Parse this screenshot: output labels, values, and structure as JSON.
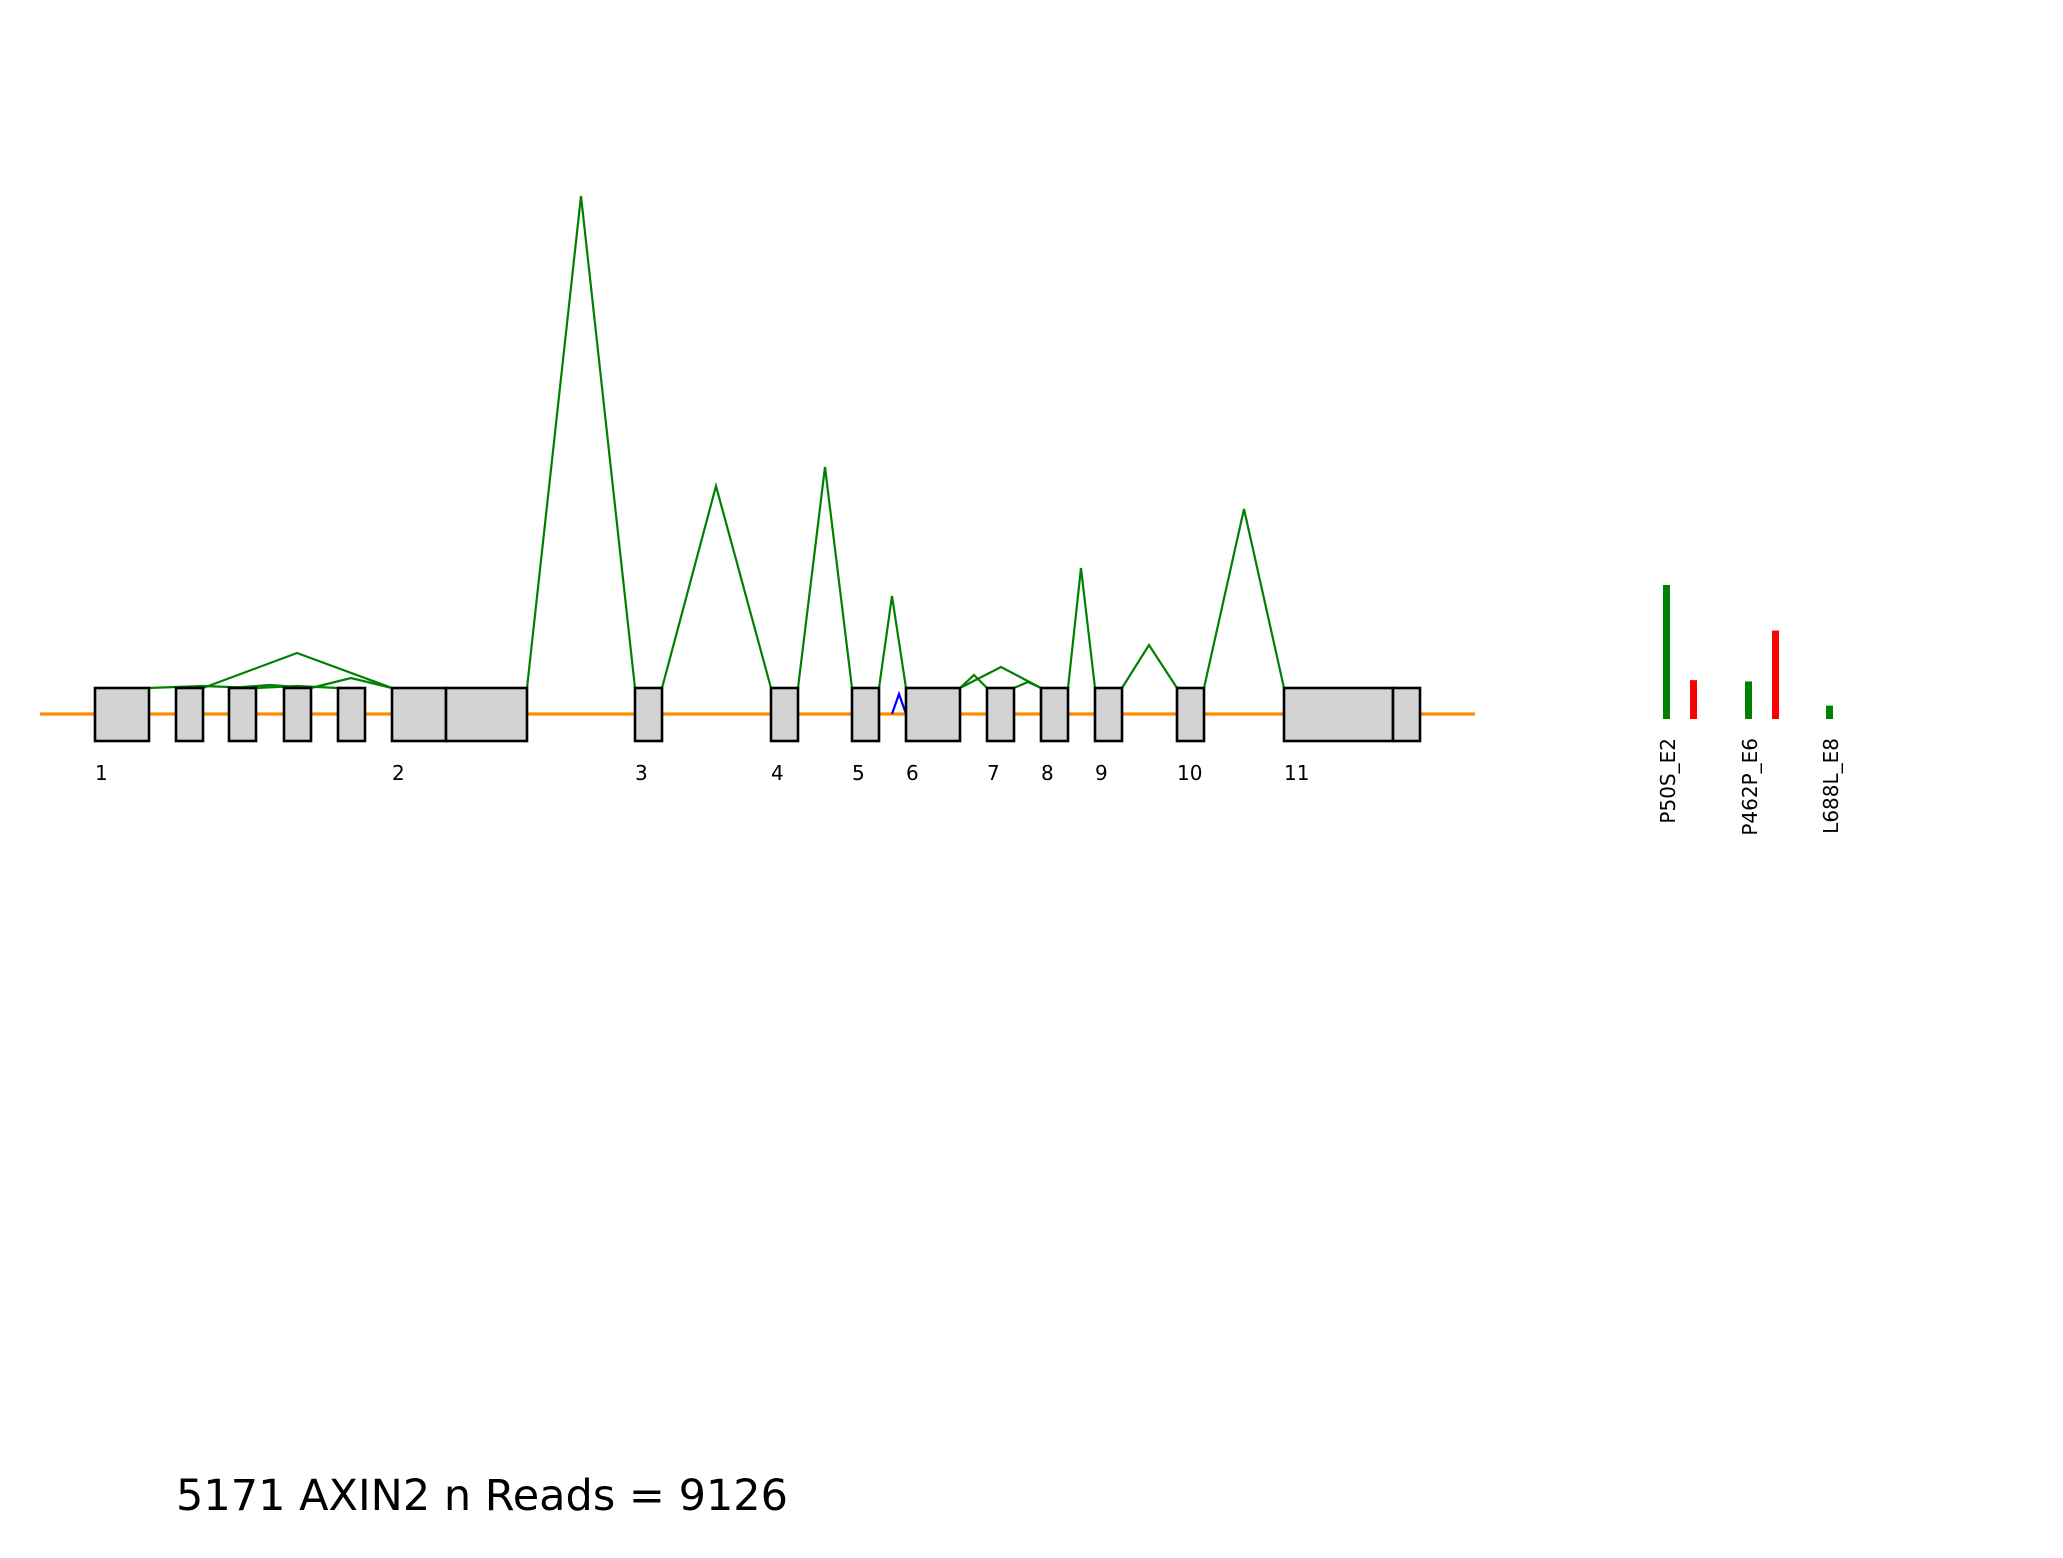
{
  "colors": {
    "backbone": "#ff8c00",
    "exon_fill": "#d3d3d3",
    "exon_stroke": "#000000",
    "junction_major": "#008000",
    "junction_minor": "#0000ff",
    "allele_alt": "#ff0000",
    "allele_ref": "#008000"
  },
  "exons": [
    {
      "label": "1"
    },
    {
      "label": ""
    },
    {
      "label": ""
    },
    {
      "label": ""
    },
    {
      "label": ""
    },
    {
      "label": "2"
    },
    {
      "label": ""
    },
    {
      "label": "3"
    },
    {
      "label": "4"
    },
    {
      "label": "5"
    },
    {
      "label": "6"
    },
    {
      "label": "7"
    },
    {
      "label": "8"
    },
    {
      "label": "9"
    },
    {
      "label": "10"
    },
    {
      "label": "11"
    },
    {
      "label": ""
    }
  ],
  "variants": [
    {
      "label": "P50S_E2",
      "ref_fraction": 1.0,
      "alt_fraction": 0.29
    },
    {
      "label": "P462P_E6",
      "ref_fraction": 0.28,
      "alt_fraction": 0.66
    },
    {
      "label": "L688L_E8",
      "ref_fraction": 0.1,
      "alt_fraction": 0.0
    }
  ],
  "footer": {
    "title": "5171 AXIN2 n Reads = 9126"
  }
}
